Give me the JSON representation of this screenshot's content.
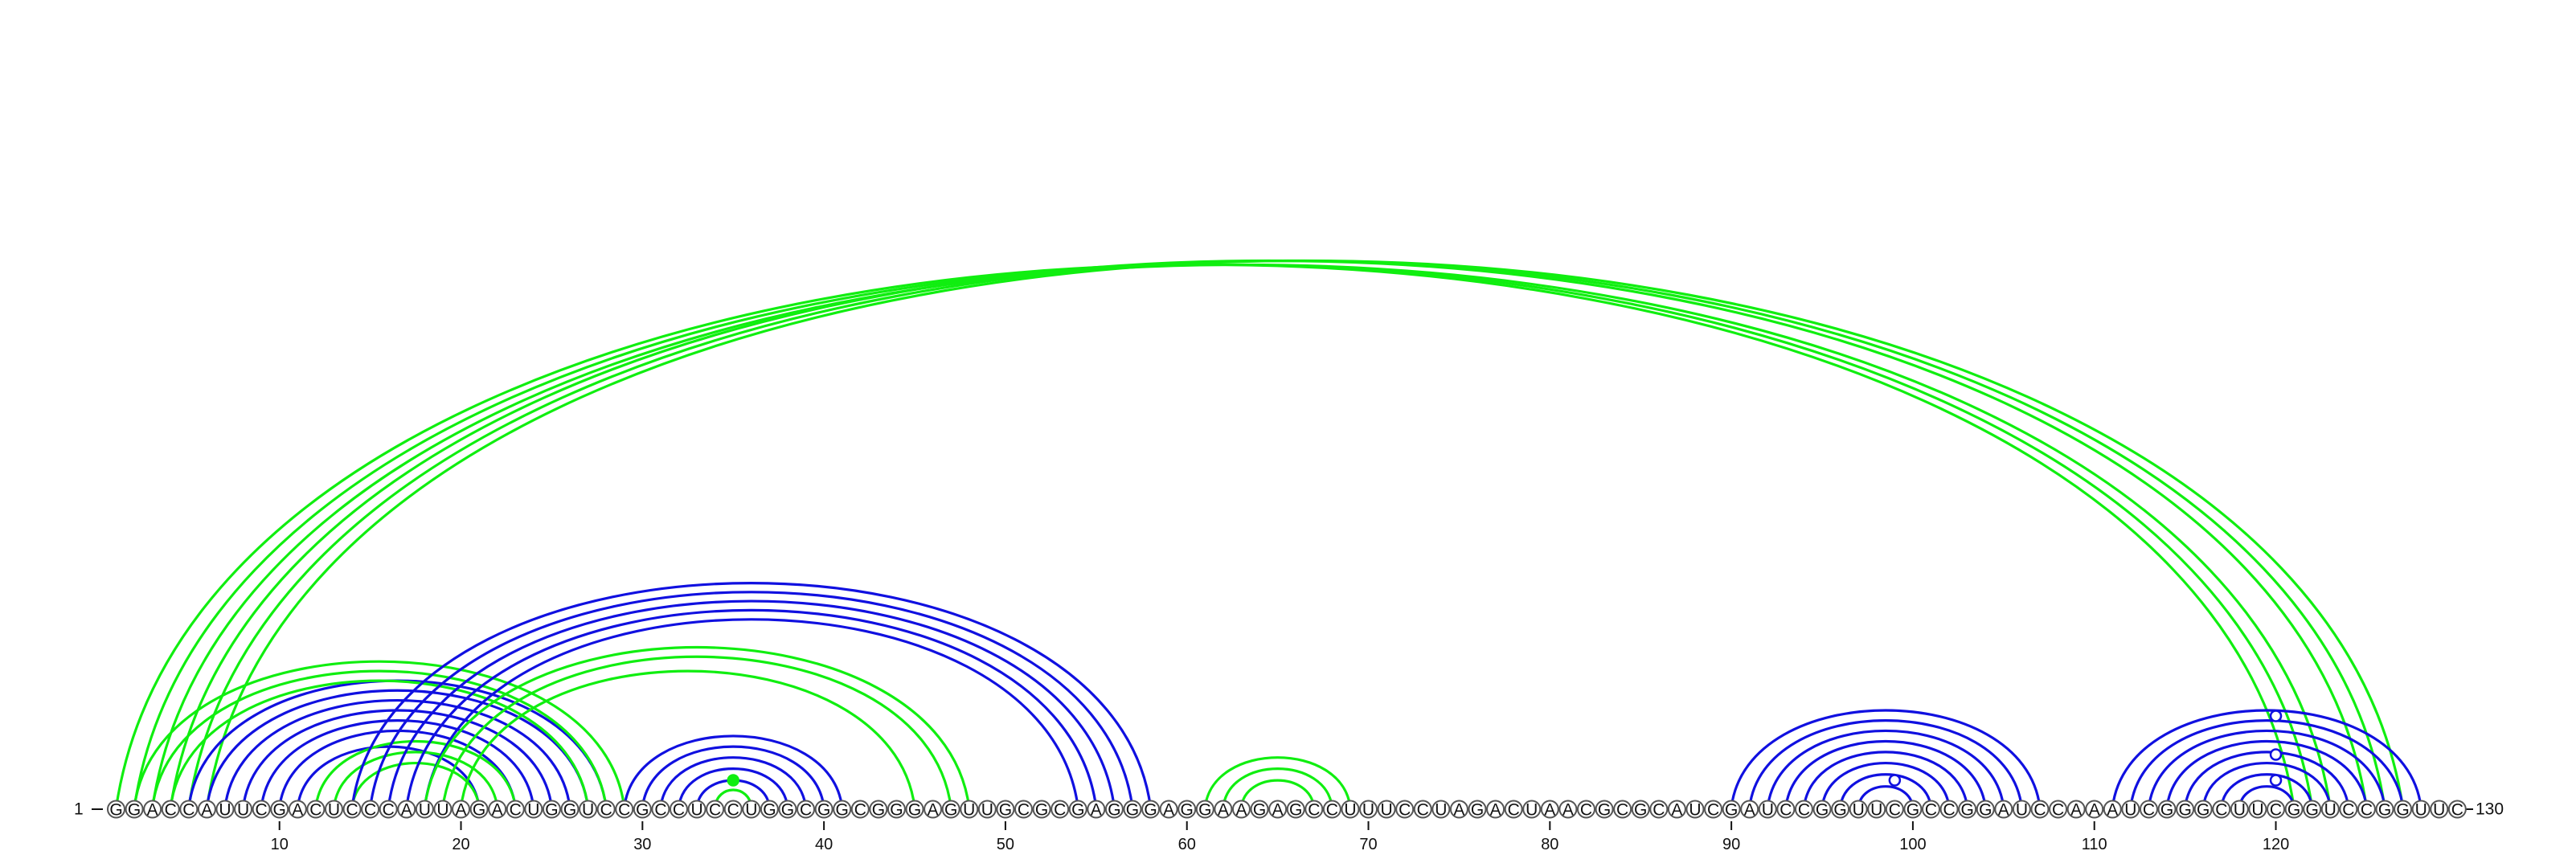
{
  "sequence": "GGACCAUUCGACUCCCAUUAGACUGGUCCGCCUCCUGGCGGCGGGAGUUGCGCGAGGGAGGAAGAGCCUUUCCUAGACUAACGCGCAUCGAUCCGGUUCGCCGGAUCCAAAUCGGGCUUCGGUCCGGUUC",
  "start_label": "1",
  "end_label": "130",
  "ticks": [
    "10",
    "20",
    "30",
    "40",
    "50",
    "60",
    "70",
    "80",
    "90",
    "100",
    "110",
    "120"
  ],
  "colors": {
    "blue": "#1010e0",
    "green": "#10ee10",
    "circle_stroke": "#555555"
  },
  "arc_groups": [
    {
      "color": "green",
      "pairs": [
        [
          1,
          121
        ],
        [
          2,
          122
        ],
        [
          3,
          123
        ],
        [
          4,
          125
        ],
        [
          5,
          126
        ],
        [
          6,
          127
        ]
      ]
    },
    {
      "color": "blue",
      "pairs": [
        [
          5,
          28
        ],
        [
          6,
          27
        ],
        [
          7,
          26
        ],
        [
          8,
          25
        ],
        [
          9,
          24
        ],
        [
          10,
          23
        ],
        [
          11,
          21
        ]
      ]
    },
    {
      "color": "green",
      "pairs": [
        [
          2,
          29
        ],
        [
          3,
          28
        ],
        [
          4,
          27
        ]
      ]
    },
    {
      "color": "green",
      "pairs": [
        [
          12,
          23
        ],
        [
          13,
          22
        ],
        [
          14,
          21
        ]
      ]
    },
    {
      "color": "blue",
      "pairs": [
        [
          14,
          58
        ],
        [
          15,
          57
        ],
        [
          16,
          56
        ],
        [
          17,
          55
        ],
        [
          18,
          54
        ]
      ]
    },
    {
      "color": "green",
      "pairs": [
        [
          18,
          48
        ],
        [
          19,
          47
        ],
        [
          20,
          45
        ]
      ]
    },
    {
      "color": "blue",
      "pairs": [
        [
          29,
          41
        ],
        [
          30,
          40
        ],
        [
          31,
          39
        ],
        [
          32,
          38
        ],
        [
          33,
          37
        ]
      ]
    },
    {
      "color": "green",
      "pairs": [
        [
          34,
          36
        ]
      ]
    },
    {
      "color": "green",
      "pairs": [
        [
          61,
          69
        ],
        [
          62,
          68
        ],
        [
          63,
          67
        ]
      ]
    },
    {
      "color": "blue",
      "pairs": [
        [
          90,
          107
        ],
        [
          91,
          106
        ],
        [
          92,
          105
        ],
        [
          93,
          104
        ],
        [
          94,
          103
        ],
        [
          95,
          102
        ],
        [
          96,
          101
        ],
        [
          97,
          100
        ]
      ]
    },
    {
      "color": "blue",
      "pairs": [
        [
          111,
          128
        ],
        [
          112,
          127
        ],
        [
          113,
          126
        ],
        [
          114,
          125
        ],
        [
          115,
          124
        ],
        [
          116,
          123
        ],
        [
          117,
          122
        ],
        [
          118,
          121
        ]
      ]
    }
  ],
  "markers": [
    {
      "pos": 35,
      "height": 0.05,
      "color": "green",
      "filled": true
    },
    {
      "pos": 99,
      "height": 0.05,
      "color": "blue",
      "filled": false
    },
    {
      "pos": 120,
      "height": 0.05,
      "color": "blue",
      "filled": false
    },
    {
      "pos": 120,
      "height": 0.13,
      "color": "blue",
      "filled": false
    },
    {
      "pos": 120,
      "height": 0.25,
      "color": "blue",
      "filled": false
    }
  ]
}
